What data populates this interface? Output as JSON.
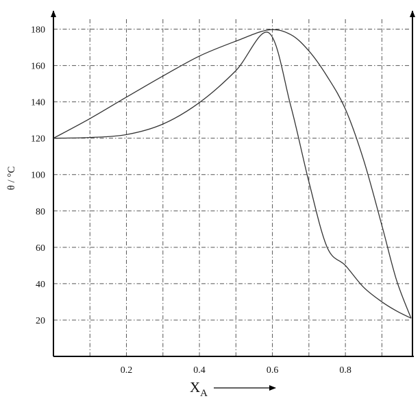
{
  "chart_data": {
    "type": "line",
    "title": "",
    "xlabel": "X",
    "xlabel_subscript": "A",
    "ylabel": "θ / °C",
    "xlim": [
      0,
      0.98
    ],
    "ylim": [
      0,
      190
    ],
    "grid": true,
    "legend": "none",
    "x_ticks": [
      0.2,
      0.4,
      0.6,
      0.8
    ],
    "x_tick_labels": [
      "0.2",
      "0.4",
      "0.6",
      "0.8"
    ],
    "y_ticks": [
      20,
      40,
      60,
      80,
      100,
      120,
      140,
      160,
      180
    ],
    "y_tick_labels": [
      "20",
      "40",
      "60",
      "80",
      "100",
      "120",
      "140",
      "160",
      "180"
    ],
    "x_gridlines": [
      0.1,
      0.2,
      0.3,
      0.4,
      0.5,
      0.6,
      0.7,
      0.8,
      0.9
    ],
    "y_gridlines": [
      20,
      40,
      60,
      80,
      100,
      120,
      140,
      160,
      180
    ],
    "colors": {
      "line": "#333333",
      "grid": "#555555",
      "axis": "#000000"
    },
    "series": [
      {
        "values": [
          [
            0,
            120
          ],
          [
            0.1,
            130.8
          ],
          [
            0.2,
            142.6
          ],
          [
            0.3,
            154.2
          ],
          [
            0.4,
            165.2
          ],
          [
            0.5,
            173.4
          ],
          [
            0.59,
            179.6
          ],
          [
            0.65,
            177
          ],
          [
            0.7,
            168
          ],
          [
            0.75,
            154
          ],
          [
            0.8,
            136
          ],
          [
            0.85,
            108
          ],
          [
            0.9,
            72
          ],
          [
            0.94,
            42
          ],
          [
            0.98,
            21
          ]
        ]
      },
      {
        "values": [
          [
            0,
            120
          ],
          [
            0.1,
            120.4
          ],
          [
            0.2,
            122
          ],
          [
            0.3,
            127.8
          ],
          [
            0.4,
            139.6
          ],
          [
            0.5,
            157.2
          ],
          [
            0.59,
            178
          ],
          [
            0.65,
            138
          ],
          [
            0.7,
            96
          ],
          [
            0.75,
            60
          ],
          [
            0.8,
            50
          ],
          [
            0.85,
            38
          ],
          [
            0.9,
            30
          ],
          [
            0.94,
            25
          ],
          [
            0.98,
            21
          ]
        ]
      }
    ]
  }
}
